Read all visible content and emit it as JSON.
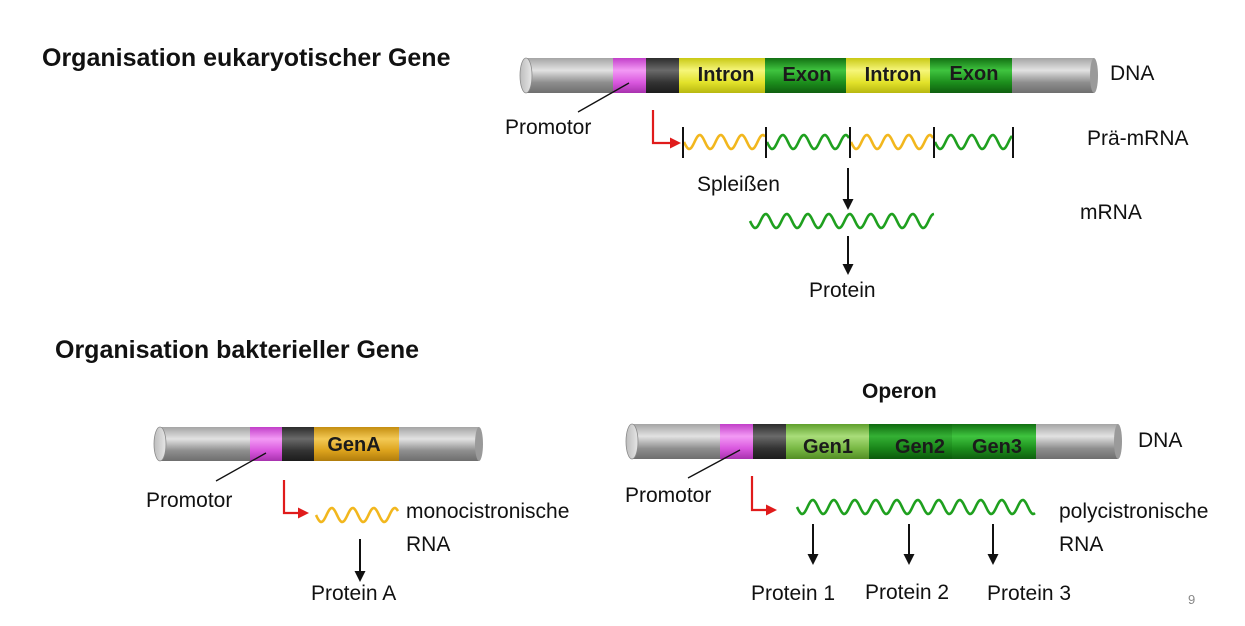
{
  "eukaryote": {
    "heading": "Organisation eukaryotischer Gene",
    "segments": [
      "Intron",
      "Exon",
      "Intron",
      "Exon"
    ],
    "dna_label": "DNA",
    "promotor_label": "Promotor",
    "pre_mrna_label": "Prä-mRNA",
    "splicing_label": "Spleißen",
    "mrna_label": "mRNA",
    "protein_label": "Protein"
  },
  "bacteria": {
    "heading": "Organisation bakterieller Gene",
    "single_gene": {
      "gene_label": "GenA",
      "promotor_label": "Promotor",
      "rna_label_line1": "monocistronische",
      "rna_label_line2": "RNA",
      "protein_label": "Protein A"
    },
    "operon": {
      "title": "Operon",
      "genes": [
        "Gen1",
        "Gen2",
        "Gen3"
      ],
      "dna_label": "DNA",
      "promotor_label": "Promotor",
      "rna_label_line1": "polycistronische",
      "rna_label_line2": "RNA",
      "proteins": [
        "Protein 1",
        "Protein 2",
        "Protein 3"
      ]
    }
  },
  "page_number": "9",
  "colors": {
    "promotor": "#e15ce6",
    "operator": "#3a3a3a",
    "intron": "#e6e62e",
    "exon": "#1f9a1f",
    "gene_a": "#e0a81c",
    "gen1": "#7fbf3f",
    "gen2": "#1e8c1e",
    "gen3": "#148214",
    "rna_intron": "#f2b71e",
    "rna_exon": "#1fa01f",
    "start_arrow": "#e01b1b"
  }
}
